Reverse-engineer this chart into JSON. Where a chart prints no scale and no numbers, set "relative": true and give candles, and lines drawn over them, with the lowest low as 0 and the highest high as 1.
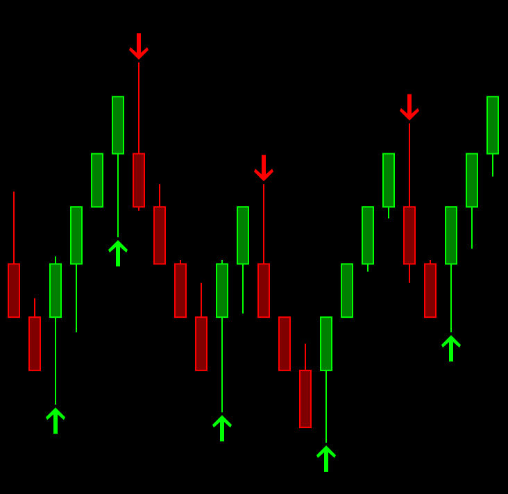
{
  "chart_data": {
    "type": "candlestick",
    "relative": true,
    "categories": [
      null,
      null,
      null,
      null,
      null,
      null,
      null,
      null,
      null,
      null,
      null,
      null,
      null,
      null,
      null,
      null,
      null,
      null,
      null,
      null,
      null,
      null,
      null,
      null
    ],
    "ohlc": [
      [
        0.47,
        0.66,
        0.33,
        0.33
      ],
      [
        0.33,
        0.38,
        0.19,
        0.19
      ],
      [
        0.33,
        0.49,
        0.1,
        0.47
      ],
      [
        0.47,
        0.62,
        0.29,
        0.62
      ],
      [
        0.62,
        0.76,
        0.62,
        0.76
      ],
      [
        0.76,
        0.91,
        0.54,
        0.91
      ],
      [
        0.76,
        1,
        0.61,
        0.62
      ],
      [
        0.62,
        0.68,
        0.47,
        0.47
      ],
      [
        0.47,
        0.48,
        0.33,
        0.33
      ],
      [
        0.33,
        0.42,
        0.19,
        0.19
      ],
      [
        0.33,
        0.48,
        0.08,
        0.47
      ],
      [
        0.47,
        0.62,
        0.34,
        0.62
      ],
      [
        0.47,
        0.68,
        0.33,
        0.33
      ],
      [
        0.33,
        0.33,
        0.19,
        0.19
      ],
      [
        0.19,
        0.26,
        0.04,
        0.04
      ],
      [
        0.19,
        0.33,
        0,
        0.33
      ],
      [
        0.33,
        0.47,
        0.33,
        0.47
      ],
      [
        0.47,
        0.62,
        0.45,
        0.62
      ],
      [
        0.62,
        0.76,
        0.59,
        0.76
      ],
      [
        0.62,
        0.84,
        0.42,
        0.47
      ],
      [
        0.47,
        0.48,
        0.33,
        0.33
      ],
      [
        0.47,
        0.62,
        0.29,
        0.62
      ],
      [
        0.62,
        0.76,
        0.51,
        0.76
      ],
      [
        0.76,
        0.91,
        0.7,
        0.91
      ]
    ]
  }
}
